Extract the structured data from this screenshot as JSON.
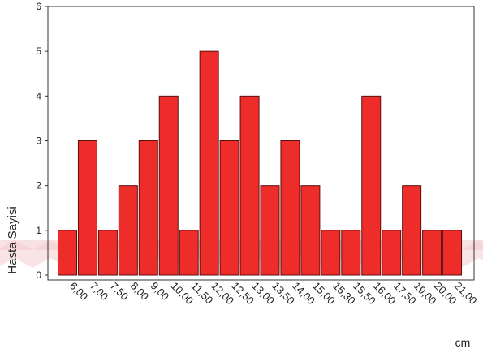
{
  "chart_data": {
    "type": "bar",
    "ylabel": "Hasta Sayisi",
    "xlabel": "cm",
    "ylim": [
      0,
      6
    ],
    "yticks": [
      0,
      1,
      2,
      3,
      4,
      5,
      6
    ],
    "grid": false,
    "categories": [
      "6,00",
      "7,00",
      "7,50",
      "8,00",
      "9,00",
      "10,00",
      "11,50",
      "12,00",
      "12,50",
      "13,00",
      "13,50",
      "14,00",
      "15,00",
      "15,30",
      "15,50",
      "16,00",
      "17,50",
      "19,00",
      "20,00",
      "21,00"
    ],
    "values": [
      1,
      3,
      1,
      2,
      3,
      4,
      1,
      5,
      3,
      4,
      2,
      3,
      2,
      1,
      1,
      4,
      1,
      2,
      1,
      1
    ],
    "bar_color": "#ee2d2a",
    "bar_edge_color": "#5a1010",
    "watermark_color": "#f2c9c9"
  }
}
